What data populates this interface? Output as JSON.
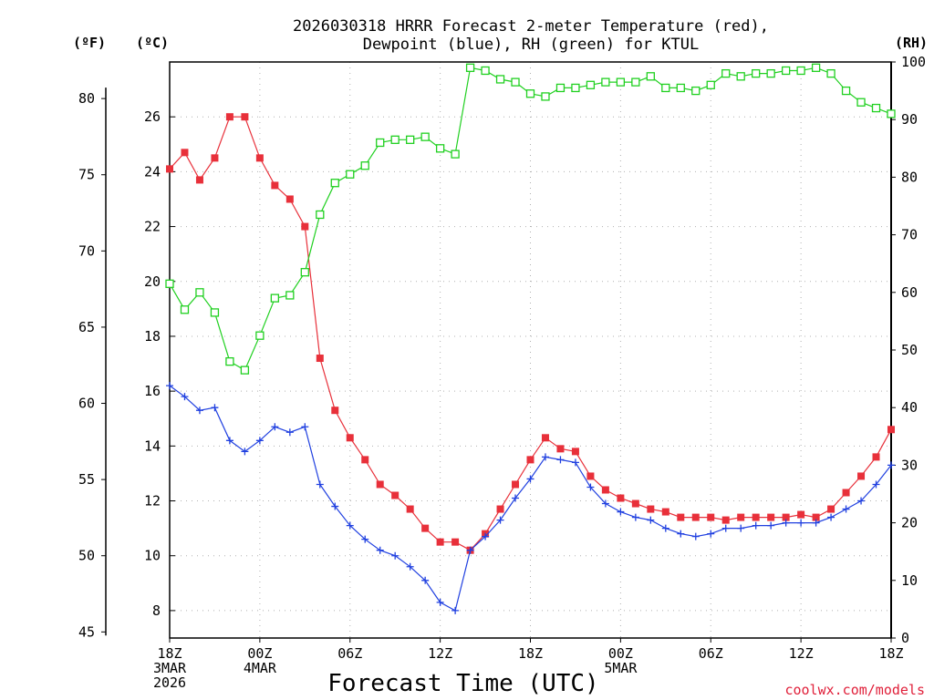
{
  "chart_data": {
    "type": "line",
    "title_lines": [
      "2026030318 HRRR Forecast 2-meter Temperature (red),",
      "Dewpoint (blue), RH (green) for KTUL"
    ],
    "xlabel": "Forecast Time (UTC)",
    "credit": "coolwx.com/models",
    "units": {
      "left_outer": "(ºF)",
      "left_inner": "(ºC)",
      "right": "(RH)"
    },
    "x_range": [
      0,
      48
    ],
    "x_ticks": [
      {
        "x": 0,
        "lines": [
          "18Z",
          "3MAR",
          "2026"
        ]
      },
      {
        "x": 6,
        "lines": [
          "00Z",
          "4MAR"
        ]
      },
      {
        "x": 12,
        "lines": [
          "06Z"
        ]
      },
      {
        "x": 18,
        "lines": [
          "12Z"
        ]
      },
      {
        "x": 24,
        "lines": [
          "18Z"
        ]
      },
      {
        "x": 30,
        "lines": [
          "00Z",
          "5MAR"
        ]
      },
      {
        "x": 36,
        "lines": [
          "06Z"
        ]
      },
      {
        "x": 42,
        "lines": [
          "12Z"
        ]
      },
      {
        "x": 48,
        "lines": [
          "18Z"
        ]
      }
    ],
    "celsius_axis": {
      "range": [
        7,
        28
      ],
      "ticks": [
        8,
        10,
        12,
        14,
        16,
        18,
        20,
        22,
        24,
        26
      ]
    },
    "fahrenheit_axis": {
      "ticks": [
        45,
        50,
        55,
        60,
        65,
        70,
        75,
        80
      ]
    },
    "rh_axis": {
      "range": [
        0,
        100
      ],
      "ticks": [
        0,
        10,
        20,
        30,
        40,
        50,
        60,
        70,
        80,
        90,
        100
      ]
    },
    "series": [
      {
        "name": "2-meter Temperature",
        "unit": "C",
        "color": "#e8303a",
        "marker": "filled-square",
        "values": [
          24.1,
          24.7,
          23.7,
          24.5,
          26.0,
          26.0,
          24.5,
          23.5,
          23.0,
          22.0,
          17.2,
          15.3,
          14.3,
          13.5,
          12.6,
          12.2,
          11.7,
          11.0,
          10.5,
          10.5,
          10.2,
          10.8,
          11.7,
          12.6,
          13.5,
          14.3,
          13.9,
          13.8,
          12.9,
          12.4,
          12.1,
          11.9,
          11.7,
          11.6,
          11.4,
          11.4,
          11.4,
          11.3,
          11.4,
          11.4,
          11.4,
          11.4,
          11.5,
          11.4,
          11.7,
          12.3,
          12.9,
          13.6,
          14.6
        ]
      },
      {
        "name": "Dewpoint",
        "unit": "C",
        "color": "#2040e0",
        "marker": "plus",
        "values": [
          16.2,
          15.8,
          15.3,
          15.4,
          14.2,
          13.8,
          14.2,
          14.7,
          14.5,
          14.7,
          12.6,
          11.8,
          11.1,
          10.6,
          10.2,
          10.0,
          9.6,
          9.1,
          8.3,
          8.0,
          10.2,
          10.7,
          11.3,
          12.1,
          12.8,
          13.6,
          13.5,
          13.4,
          12.5,
          11.9,
          11.6,
          11.4,
          11.3,
          11.0,
          10.8,
          10.7,
          10.8,
          11.0,
          11.0,
          11.1,
          11.1,
          11.2,
          11.2,
          11.2,
          11.4,
          11.7,
          12.0,
          12.6,
          13.3
        ]
      },
      {
        "name": "RH",
        "unit": "%",
        "color": "#20d020",
        "marker": "open-square",
        "values": [
          61.5,
          57.0,
          60.0,
          56.5,
          48.0,
          46.5,
          52.5,
          59.0,
          59.5,
          63.5,
          73.5,
          79.0,
          80.5,
          82.0,
          86.0,
          86.5,
          86.5,
          87.0,
          85.0,
          84.0,
          99.0,
          98.5,
          97.0,
          96.5,
          94.5,
          94.0,
          95.5,
          95.5,
          96.0,
          96.5,
          96.5,
          96.5,
          97.5,
          95.5,
          95.5,
          95.0,
          96.0,
          98.0,
          97.5,
          98.0,
          98.0,
          98.5,
          98.5,
          99.0,
          98.0,
          95.0,
          93.0,
          92.0,
          91.0
        ]
      }
    ]
  }
}
